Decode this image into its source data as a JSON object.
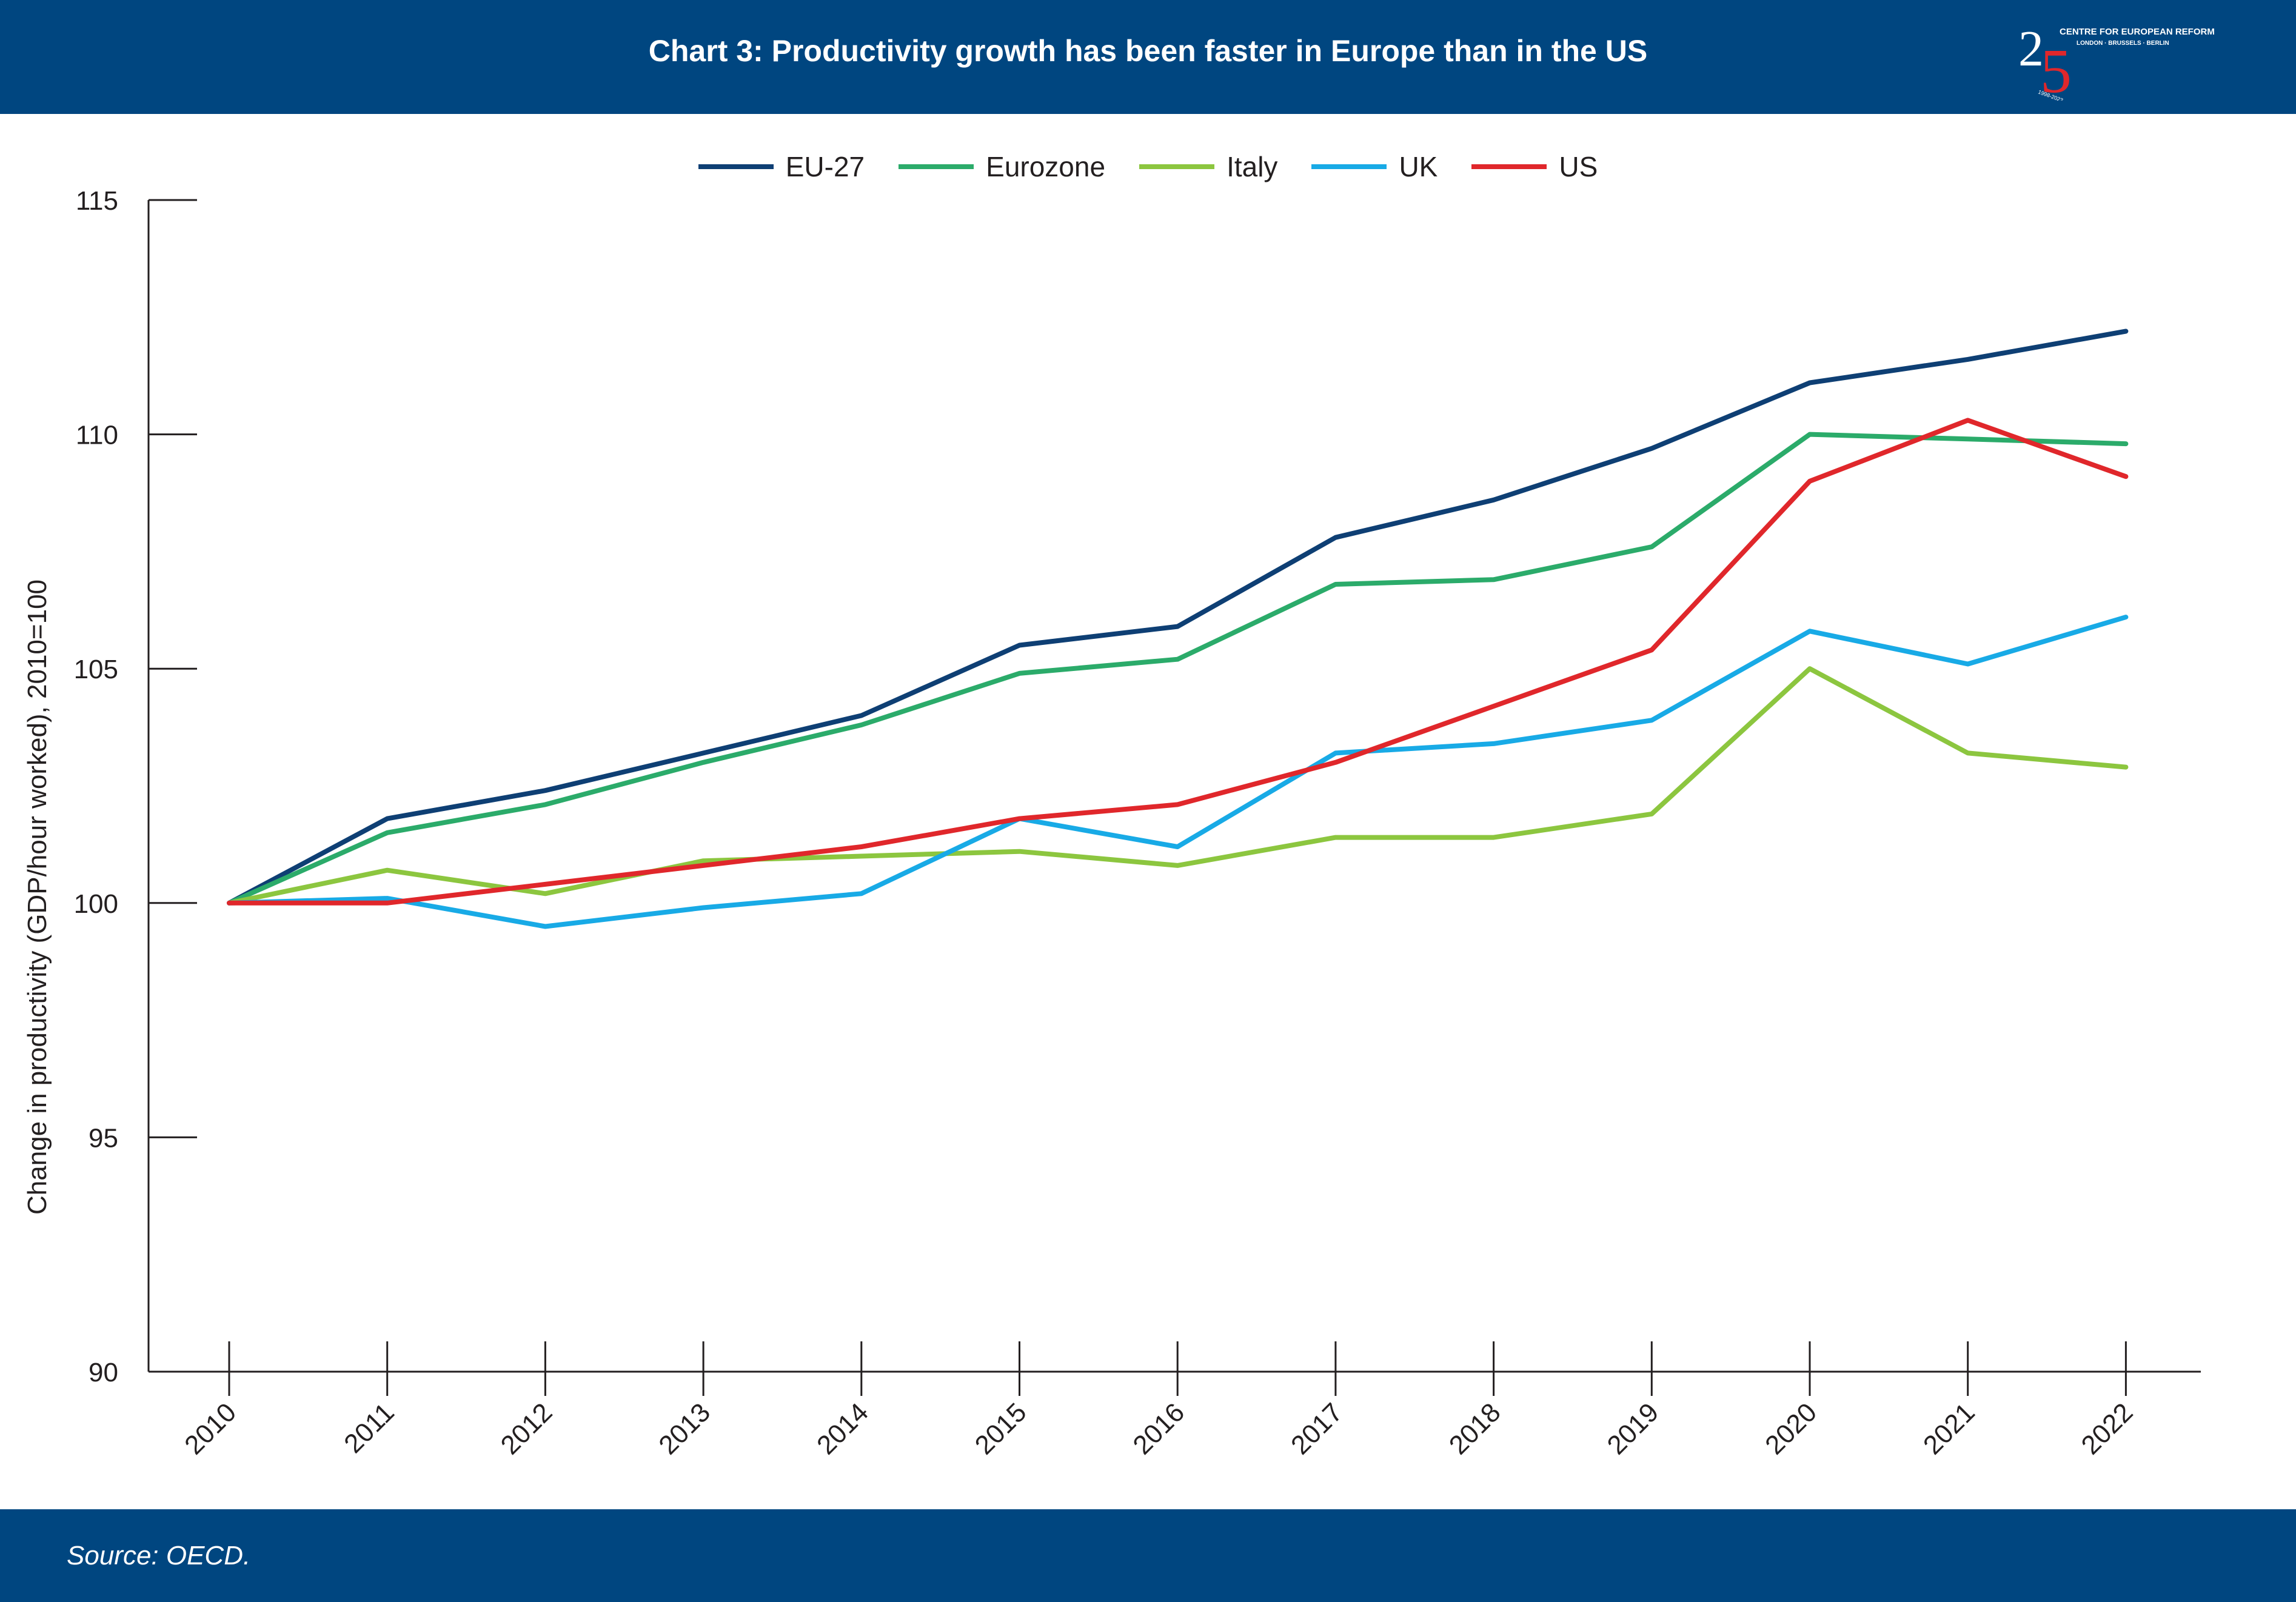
{
  "header": {
    "title": "Chart 3: Productivity growth has been faster in Europe than in the US"
  },
  "logo": {
    "name": "CENTRE FOR EUROPEAN REFORM",
    "cities": "LONDON · BRUSSELS · BERLIN",
    "mark": "25",
    "years": "1998-2023"
  },
  "colors": {
    "header_bg": "#004680",
    "footer_bg": "#004680",
    "EU-27": "#0e3f74",
    "Eurozone": "#2bab6a",
    "Italy": "#8cc63f",
    "UK": "#18aae6",
    "US": "#e0272b"
  },
  "footer": {
    "source": "Source: OECD."
  },
  "chart_data": {
    "type": "line",
    "title": "Chart 3: Productivity growth has been faster in Europe than in the US",
    "xlabel": "",
    "ylabel": "Change in productivity (GDP/hour worked), 2010=100",
    "ylim": [
      90,
      115
    ],
    "yticks": [
      "90",
      "95",
      "100",
      "105",
      "110",
      "115"
    ],
    "x": [
      "2010",
      "2011",
      "2012",
      "2013",
      "2014",
      "2015",
      "2016",
      "2017",
      "2018",
      "2019",
      "2020",
      "2021",
      "2022"
    ],
    "grid": false,
    "legend_position": "top-center",
    "series": [
      {
        "name": "EU-27",
        "color": "#0e3f74",
        "values": [
          100,
          101.8,
          102.4,
          103.2,
          104.0,
          105.5,
          105.9,
          107.8,
          108.6,
          109.7,
          111.1,
          111.6,
          112.2
        ]
      },
      {
        "name": "Eurozone",
        "color": "#2bab6a",
        "values": [
          100,
          101.5,
          102.1,
          103.0,
          103.8,
          104.9,
          105.2,
          106.8,
          106.9,
          107.6,
          110.0,
          109.9,
          109.8
        ]
      },
      {
        "name": "Italy",
        "color": "#8cc63f",
        "values": [
          100,
          100.7,
          100.2,
          100.9,
          101.0,
          101.1,
          100.8,
          101.4,
          101.4,
          101.9,
          105.0,
          103.2,
          102.9
        ]
      },
      {
        "name": "UK",
        "color": "#18aae6",
        "values": [
          100,
          100.1,
          99.5,
          99.9,
          100.2,
          101.8,
          101.2,
          103.2,
          103.4,
          103.9,
          105.8,
          105.1,
          106.1
        ]
      },
      {
        "name": "US",
        "color": "#e0272b",
        "values": [
          100,
          100.0,
          100.4,
          100.8,
          101.2,
          101.8,
          102.1,
          103.0,
          104.2,
          105.4,
          109.0,
          110.3,
          109.1
        ]
      }
    ]
  }
}
